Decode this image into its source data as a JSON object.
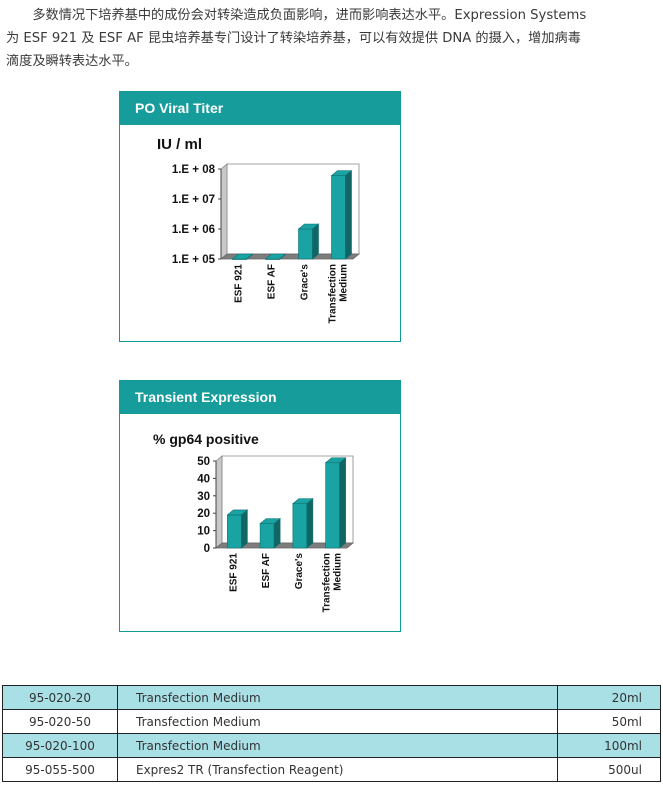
{
  "intro": {
    "line1": "多数情况下培养基中的成份会对转染造成负面影响，进而影响表达水平。Expression Systems",
    "line2": "为 ESF 921 及 ESF AF 昆虫培养基专门设计了转染培养基，可以有效提供 DNA 的摄入，增加病毒",
    "line3": "滴度及瞬转表达水平。"
  },
  "panels": [
    {
      "title": "PO Viral Titer"
    },
    {
      "title": "Transient Expression"
    }
  ],
  "chart_data": [
    {
      "type": "bar",
      "title": "PO Viral Titer",
      "ylabel": "IU / ml",
      "y_scale": "log",
      "ylim": [
        100000,
        100000000
      ],
      "yticks": [
        "1.E + 05",
        "1.E + 06",
        "1.E + 07",
        "1.E + 08"
      ],
      "categories": [
        "ESF 921",
        "ESF  AF",
        "Grace's",
        "Transfection\nMedium"
      ],
      "values": [
        100000,
        100000,
        1000000,
        60000000
      ],
      "color": "#1aa3a3",
      "grid": false
    },
    {
      "type": "bar",
      "title": "Transient Expression",
      "ylabel": "% gp64 positive",
      "ylim": [
        0,
        50
      ],
      "yticks": [
        "0",
        "10",
        "20",
        "30",
        "40",
        "50"
      ],
      "categories": [
        "ESF 921",
        "ESF  AF",
        "Grace's",
        "Transfection\nMedium"
      ],
      "values": [
        19,
        14,
        25.5,
        49
      ],
      "color": "#1aa3a3",
      "grid": false
    }
  ],
  "table": {
    "rows": [
      {
        "code": "95-020-20",
        "name": "Transfection Medium",
        "size": "20ml"
      },
      {
        "code": "95-020-50",
        "name": "Transfection Medium",
        "size": "50ml"
      },
      {
        "code": "95-020-100",
        "name": "Transfection Medium",
        "size": "100ml"
      },
      {
        "code": "95-055-500",
        "name": "Expres2 TR (Transfection Reagent)",
        "size": "500ul"
      }
    ],
    "highlight_color": "#a8e0e6"
  }
}
